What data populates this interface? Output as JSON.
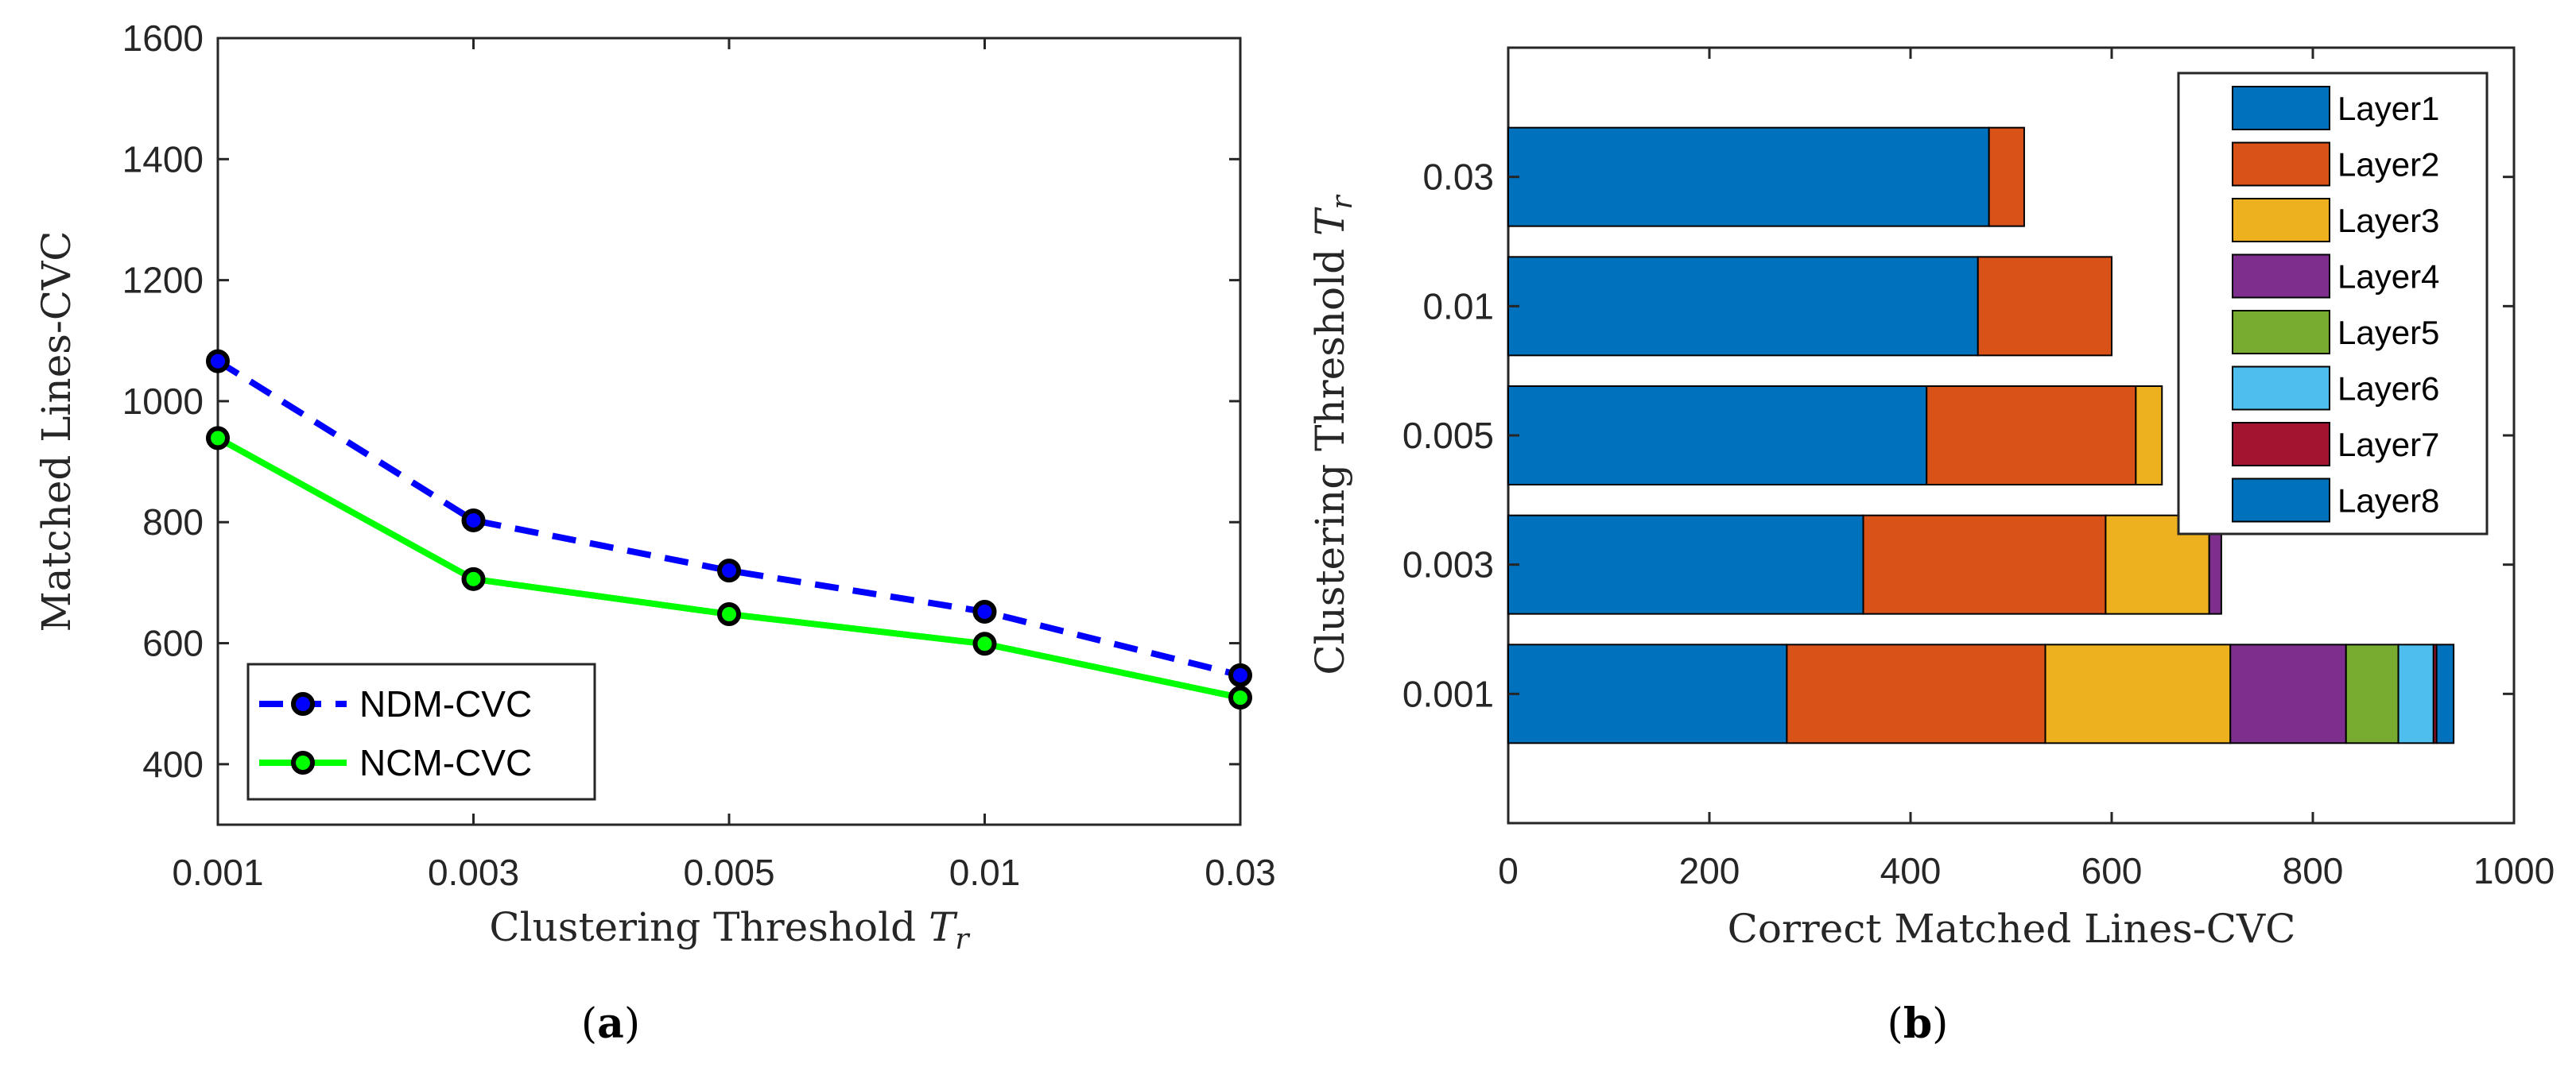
{
  "chart_data": [
    {
      "type": "line",
      "categories": [
        "0.001",
        "0.003",
        "0.005",
        "0.01",
        "0.03"
      ],
      "series": [
        {
          "name": "NDM-CVC",
          "values": [
            1066,
            803,
            720,
            652,
            547
          ],
          "color": "#0000ff",
          "marker_color": "#0000ff",
          "style": "dashed"
        },
        {
          "name": "NCM-CVC",
          "values": [
            939,
            706,
            648,
            599,
            510
          ],
          "color": "#00ff00",
          "marker_color": "#00ff00",
          "style": "solid"
        }
      ],
      "ylim": [
        300,
        1600
      ],
      "yticks": [
        "400",
        "600",
        "800",
        "1000",
        "1200",
        "1400",
        "1600"
      ],
      "xlabel_prefix": "Clustering Threshold",
      "xlabel_var": "T",
      "xlabel_sub": "r",
      "ylabel": "Matched Lines-CVC",
      "legend": "bottom-left",
      "caption_label": "a"
    },
    {
      "type": "bar",
      "orientation": "horizontal",
      "stacked": true,
      "categories": [
        "0.001",
        "0.003",
        "0.005",
        "0.01",
        "0.03"
      ],
      "series": [
        {
          "name": "Layer1",
          "color": "#0072bd",
          "values": [
            277,
            353,
            416,
            467,
            478
          ]
        },
        {
          "name": "Layer2",
          "color": "#d95319",
          "values": [
            257,
            241,
            208,
            133,
            35
          ]
        },
        {
          "name": "Layer3",
          "color": "#edb120",
          "values": [
            184,
            103,
            26,
            0,
            0
          ]
        },
        {
          "name": "Layer4",
          "color": "#7e2f8e",
          "values": [
            115,
            12,
            0,
            0,
            0
          ]
        },
        {
          "name": "Layer5",
          "color": "#77ac30",
          "values": [
            52,
            0,
            0,
            0,
            0
          ]
        },
        {
          "name": "Layer6",
          "color": "#4dbeee",
          "values": [
            35,
            0,
            0,
            0,
            0
          ]
        },
        {
          "name": "Layer7",
          "color": "#a2142f",
          "values": [
            3,
            0,
            0,
            0,
            0
          ]
        },
        {
          "name": "Layer8",
          "color": "#0072bd",
          "values": [
            17,
            0,
            0,
            0,
            0
          ]
        }
      ],
      "xlim": [
        0,
        1000
      ],
      "xticks": [
        "0",
        "200",
        "400",
        "600",
        "800",
        "1000"
      ],
      "xlabel": "Correct Matched Lines-CVC",
      "ylabel_prefix": "Clustering Threshold",
      "ylabel_var": "T",
      "ylabel_sub": "r",
      "legend": "top-right",
      "caption_label": "b"
    }
  ]
}
